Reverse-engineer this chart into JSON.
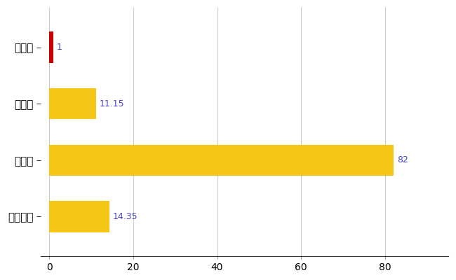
{
  "categories": [
    "今別町",
    "県平均",
    "県最大",
    "全国平均"
  ],
  "values": [
    1,
    11.15,
    82,
    14.35
  ],
  "bar_colors": [
    "#cc0000",
    "#f5c518",
    "#f5c518",
    "#f5c518"
  ],
  "value_labels": [
    "1",
    "11.15",
    "82",
    "14.35"
  ],
  "value_label_color": "#4444cc",
  "xlim": [
    -2,
    95
  ],
  "xticks": [
    0,
    20,
    40,
    60,
    80
  ],
  "bar_height": 0.55,
  "background_color": "#ffffff",
  "grid_color": "#cccccc"
}
